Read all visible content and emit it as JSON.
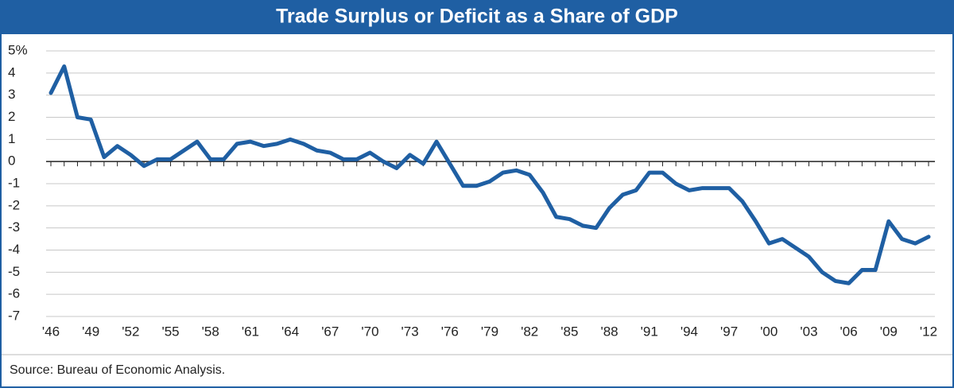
{
  "chart_data": {
    "type": "line",
    "title": "Trade Surplus or Deficit as a Share of GDP",
    "source": "Source: Bureau of Economic Analysis.",
    "x": [
      1946,
      1947,
      1948,
      1949,
      1950,
      1951,
      1952,
      1953,
      1954,
      1955,
      1956,
      1957,
      1958,
      1959,
      1960,
      1961,
      1962,
      1963,
      1964,
      1965,
      1966,
      1967,
      1968,
      1969,
      1970,
      1971,
      1972,
      1973,
      1974,
      1975,
      1976,
      1977,
      1978,
      1979,
      1980,
      1981,
      1982,
      1983,
      1984,
      1985,
      1986,
      1987,
      1988,
      1989,
      1990,
      1991,
      1992,
      1993,
      1994,
      1995,
      1996,
      1997,
      1998,
      1999,
      2000,
      2001,
      2002,
      2003,
      2004,
      2005,
      2006,
      2007,
      2008,
      2009,
      2010,
      2011,
      2012
    ],
    "series": [
      {
        "color": "#1f5fa3",
        "values": [
          3.1,
          4.3,
          2.0,
          1.9,
          0.2,
          0.7,
          0.3,
          -0.2,
          0.1,
          0.1,
          0.5,
          0.9,
          0.1,
          0.1,
          0.8,
          0.9,
          0.7,
          0.8,
          1.0,
          0.8,
          0.5,
          0.4,
          0.1,
          0.1,
          0.4,
          0.0,
          -0.3,
          0.3,
          -0.1,
          0.9,
          -0.1,
          -1.1,
          -1.1,
          -0.9,
          -0.5,
          -0.4,
          -0.6,
          -1.4,
          -2.5,
          -2.6,
          -2.9,
          -3.0,
          -2.1,
          -1.5,
          -1.3,
          -0.5,
          -0.5,
          -1.0,
          -1.3,
          -1.2,
          -1.2,
          -1.2,
          -1.8,
          -2.7,
          -3.7,
          -3.5,
          -3.9,
          -4.3,
          -5.0,
          -5.4,
          -5.5,
          -4.9,
          -4.9,
          -2.7,
          -3.5,
          -3.7,
          -3.4
        ]
      }
    ],
    "xlim": [
      1946,
      2012
    ],
    "xticks": [
      {
        "value": 1946,
        "label": "'46"
      },
      {
        "value": 1949,
        "label": "'49"
      },
      {
        "value": 1952,
        "label": "'52"
      },
      {
        "value": 1955,
        "label": "'55"
      },
      {
        "value": 1958,
        "label": "'58"
      },
      {
        "value": 1961,
        "label": "'61"
      },
      {
        "value": 1964,
        "label": "'64"
      },
      {
        "value": 1967,
        "label": "'67"
      },
      {
        "value": 1970,
        "label": "'70"
      },
      {
        "value": 1973,
        "label": "'73"
      },
      {
        "value": 1976,
        "label": "'76"
      },
      {
        "value": 1979,
        "label": "'79"
      },
      {
        "value": 1982,
        "label": "'82"
      },
      {
        "value": 1985,
        "label": "'85"
      },
      {
        "value": 1988,
        "label": "'88"
      },
      {
        "value": 1991,
        "label": "'91"
      },
      {
        "value": 1994,
        "label": "'94"
      },
      {
        "value": 1997,
        "label": "'97"
      },
      {
        "value": 2000,
        "label": "'00"
      },
      {
        "value": 2003,
        "label": "'03"
      },
      {
        "value": 2006,
        "label": "'06"
      },
      {
        "value": 2009,
        "label": "'09"
      },
      {
        "value": 2012,
        "label": "'12"
      }
    ],
    "ylim": [
      -7,
      5
    ],
    "yticks": [
      {
        "value": 5,
        "label": "5%"
      },
      4,
      3,
      2,
      1,
      0,
      -1,
      -2,
      -3,
      -4,
      -5,
      -6,
      -7
    ],
    "grid": true
  }
}
